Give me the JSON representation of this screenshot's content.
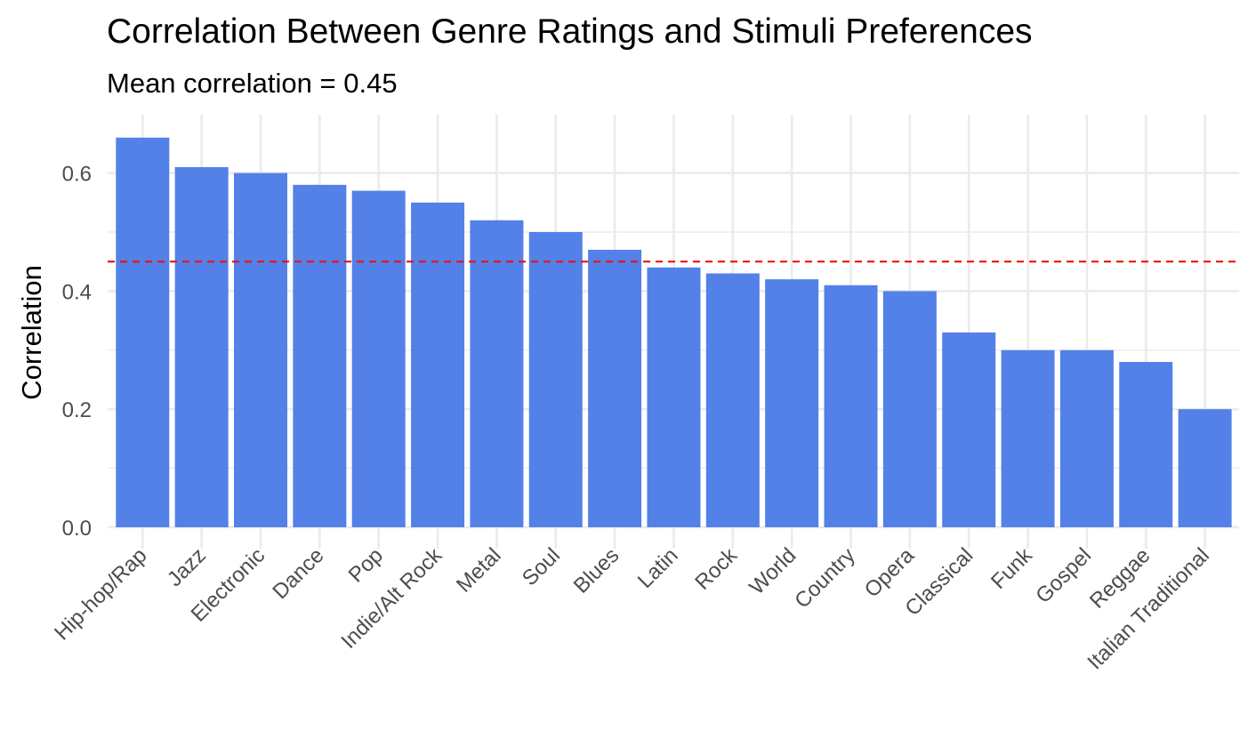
{
  "chart_data": {
    "type": "bar",
    "title": "Correlation Between Genre Ratings and Stimuli Preferences",
    "subtitle": "Mean correlation = 0.45",
    "xlabel": "",
    "ylabel": "Correlation",
    "categories": [
      "Hip-hop/Rap",
      "Jazz",
      "Electronic",
      "Dance",
      "Pop",
      "Indie/Alt Rock",
      "Metal",
      "Soul",
      "Blues",
      "Latin",
      "Rock",
      "World",
      "Country",
      "Opera",
      "Classical",
      "Funk",
      "Gospel",
      "Reggae",
      "Italian Traditional"
    ],
    "values": [
      0.66,
      0.61,
      0.6,
      0.58,
      0.57,
      0.55,
      0.52,
      0.5,
      0.47,
      0.44,
      0.43,
      0.42,
      0.41,
      0.4,
      0.33,
      0.3,
      0.3,
      0.28,
      0.2
    ],
    "ylim": [
      0,
      0.69
    ],
    "yticks": [
      0.0,
      0.2,
      0.4,
      0.6
    ],
    "ytick_labels": [
      "0.0",
      "0.2",
      "0.4",
      "0.6"
    ],
    "reference_line": {
      "value": 0.45,
      "style": "dashed",
      "color": "#ee1111"
    },
    "grid": true,
    "legend": "none",
    "colors": {
      "bar": "#5381e8",
      "grid": "#ebebeb",
      "axis_text": "#4d4d4d"
    }
  }
}
